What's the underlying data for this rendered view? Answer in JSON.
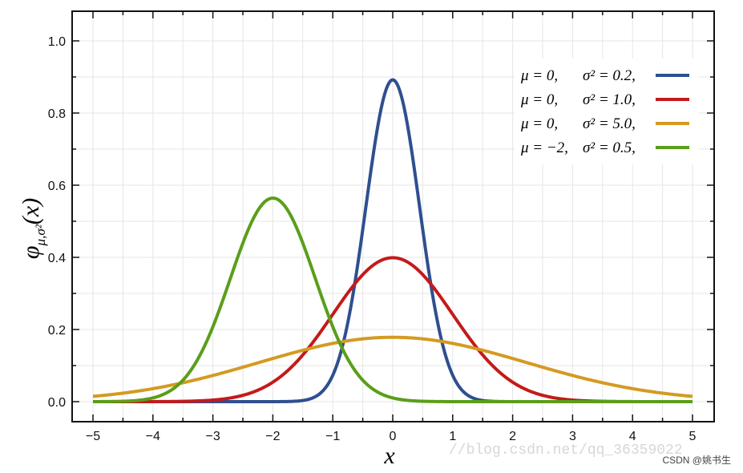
{
  "chart_data": {
    "type": "line",
    "xlabel": "x",
    "ylabel": "φ",
    "ylabel_subscript": "μ,σ²",
    "ylabel_argument": "(x)",
    "xlim": [
      -5,
      5
    ],
    "ylim": [
      0,
      1.05
    ],
    "x_ticks": [
      -5,
      -4,
      -3,
      -2,
      -1,
      0,
      1,
      2,
      3,
      4,
      5
    ],
    "x_tick_labels": [
      "−5",
      "−4",
      "−3",
      "−2",
      "−1",
      "0",
      "1",
      "2",
      "3",
      "4",
      "5"
    ],
    "y_ticks": [
      0,
      0.2,
      0.4,
      0.6,
      0.8,
      1.0
    ],
    "y_tick_labels": [
      "0.0",
      "0.2",
      "0.4",
      "0.6",
      "0.8",
      "1.0"
    ],
    "grid": true,
    "legend_placement": "top-right",
    "series": [
      {
        "name": "μ = 0,  σ² = 0.2,",
        "mu_text": "μ = 0,",
        "sigma_text": "σ² = 0.2,",
        "mu": 0,
        "variance": 0.2,
        "peak": 0.89,
        "color": "#2f4f8f"
      },
      {
        "name": "μ = 0,  σ² = 1.0,",
        "mu_text": "μ = 0,",
        "sigma_text": "σ² = 1.0,",
        "mu": 0,
        "variance": 1.0,
        "peak": 0.4,
        "color": "#c41a1a"
      },
      {
        "name": "μ = 0,  σ² = 5.0,",
        "mu_text": "μ = 0,",
        "sigma_text": "σ² = 5.0,",
        "mu": 0,
        "variance": 5.0,
        "peak": 0.18,
        "color": "#d49a22"
      },
      {
        "name": "μ = −2,  σ² = 0.5,",
        "mu_text": "μ = −2,",
        "sigma_text": "σ² = 0.5,",
        "mu": -2,
        "variance": 0.5,
        "peak": 0.56,
        "color": "#5a9e1a"
      }
    ]
  },
  "watermark": "//blog.csdn.net/qq_36359022",
  "credit": "CSDN @姚书生"
}
